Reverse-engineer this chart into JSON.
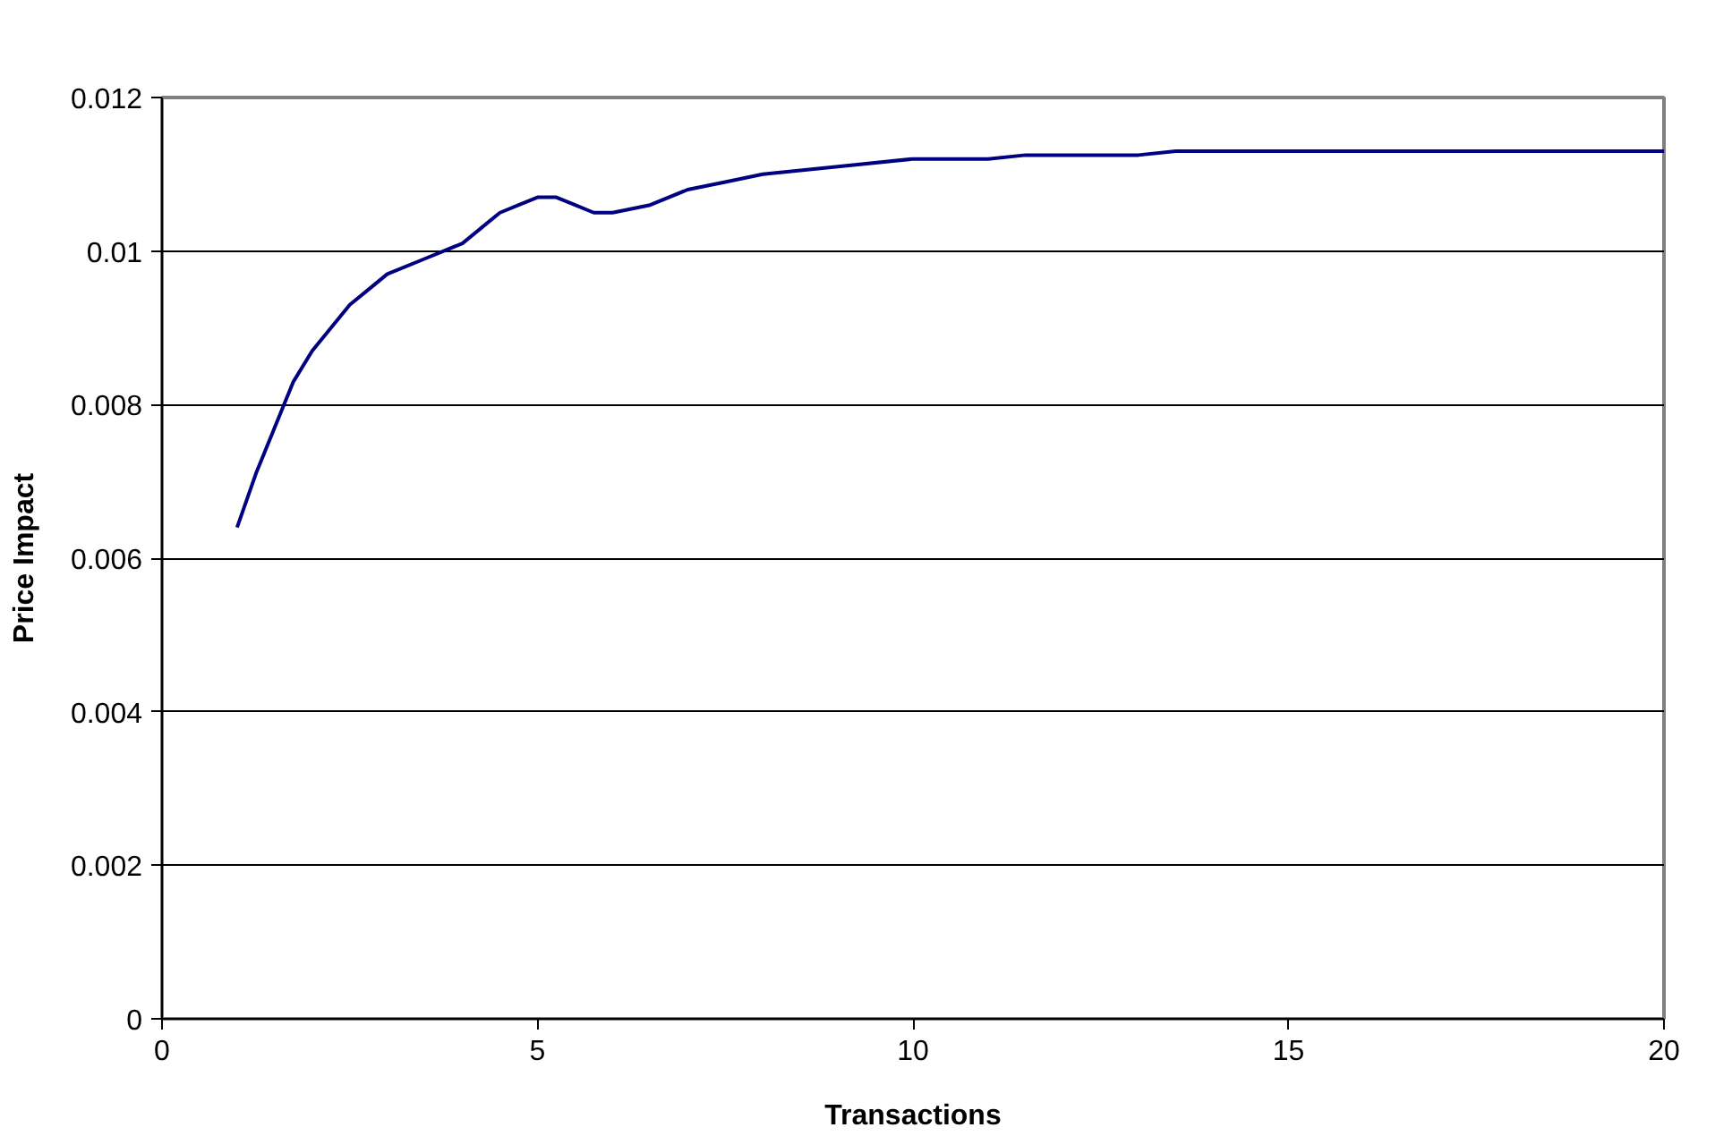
{
  "chart_data": {
    "type": "line",
    "xlabel": "Transactions",
    "ylabel": "Price Impact",
    "x": [
      1,
      1.25,
      1.5,
      1.75,
      2,
      2.25,
      2.5,
      2.75,
      3,
      3.5,
      4,
      4.25,
      4.5,
      4.75,
      5,
      5.25,
      5.5,
      5.75,
      6,
      6.5,
      7,
      7.5,
      8,
      9,
      10,
      11,
      11.5,
      13,
      13.5,
      20
    ],
    "series": [
      {
        "color": "#000080",
        "values": [
          0.0064,
          0.0071,
          0.0077,
          0.0083,
          0.0087,
          0.009,
          0.0093,
          0.0095,
          0.0097,
          0.0099,
          0.0101,
          0.0103,
          0.0105,
          0.0106,
          0.0107,
          0.0107,
          0.0106,
          0.0105,
          0.0105,
          0.0106,
          0.0108,
          0.0109,
          0.011,
          0.0111,
          0.0112,
          0.0112,
          0.01125,
          0.01125,
          0.0113,
          0.0113
        ]
      }
    ],
    "xlim": [
      0,
      20
    ],
    "xticks": [
      0,
      5,
      10,
      15,
      20
    ],
    "ylim": [
      0,
      0.012
    ],
    "yticks": [
      "0",
      0.002,
      0.004,
      0.006,
      0.008,
      0.01,
      0.012
    ],
    "grid": "y",
    "marker": "none",
    "line_style": "solid"
  }
}
